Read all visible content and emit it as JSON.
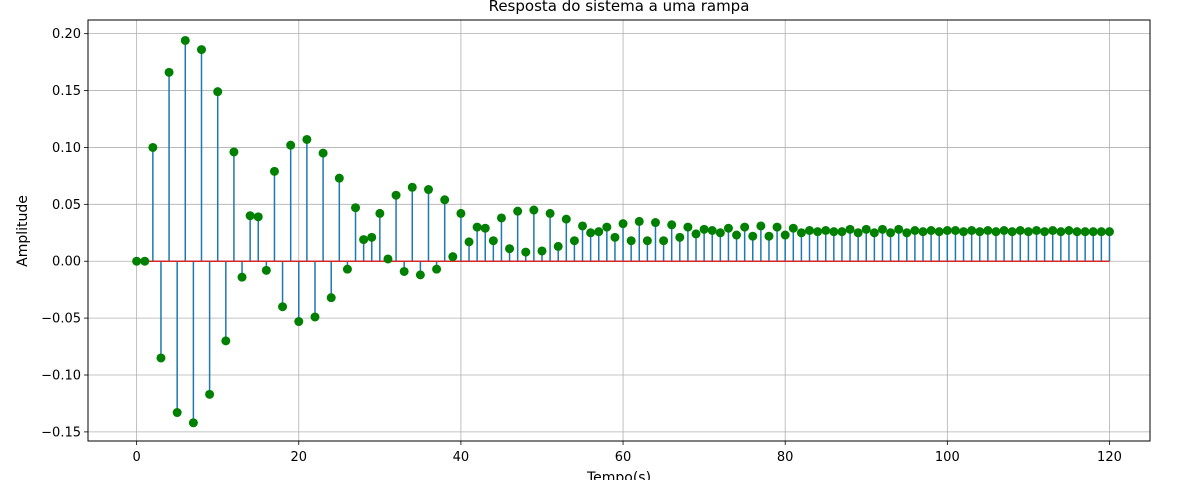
{
  "chart_data": {
    "type": "stem",
    "title": "Resposta do sistema a uma rampa",
    "xlabel": "Tempo(s)",
    "ylabel": "Amplitude",
    "xlim": [
      -6,
      125
    ],
    "ylim": [
      -0.158,
      0.212
    ],
    "grid": true,
    "x_ticks": [
      0,
      20,
      40,
      60,
      80,
      100,
      120
    ],
    "x_tick_labels": [
      "0",
      "20",
      "40",
      "60",
      "80",
      "100",
      "120"
    ],
    "y_ticks": [
      -0.15,
      -0.1,
      -0.05,
      0.0,
      0.05,
      0.1,
      0.15,
      0.2
    ],
    "y_tick_labels": [
      "−0.15",
      "−0.10",
      "−0.05",
      "0.00",
      "0.05",
      "0.10",
      "0.15",
      "0.20"
    ],
    "colors": {
      "stem": "#1f77b4",
      "marker": "#008000",
      "baseline": "#d62728",
      "grid": "#b0b0b0"
    },
    "baseline": 0,
    "x_start": 0,
    "x_step": 1,
    "values": [
      0.0,
      0.0,
      0.1,
      -0.085,
      0.166,
      -0.133,
      0.194,
      -0.142,
      0.186,
      -0.117,
      0.149,
      -0.07,
      0.096,
      -0.014,
      0.04,
      0.039,
      -0.008,
      0.079,
      -0.04,
      0.102,
      -0.053,
      0.107,
      -0.049,
      0.095,
      -0.032,
      0.073,
      -0.007,
      0.047,
      0.019,
      0.021,
      0.042,
      0.002,
      0.058,
      -0.009,
      0.065,
      -0.012,
      0.063,
      -0.007,
      0.054,
      0.004,
      0.042,
      0.017,
      0.03,
      0.029,
      0.018,
      0.038,
      0.011,
      0.044,
      0.008,
      0.045,
      0.009,
      0.042,
      0.013,
      0.037,
      0.018,
      0.031,
      0.025,
      0.026,
      0.03,
      0.021,
      0.033,
      0.018,
      0.035,
      0.018,
      0.034,
      0.018,
      0.032,
      0.021,
      0.03,
      0.024,
      0.028,
      0.027,
      0.025,
      0.029,
      0.023,
      0.03,
      0.022,
      0.031,
      0.022,
      0.03,
      0.023,
      0.029,
      0.025,
      0.027,
      0.026,
      0.027,
      0.026,
      0.026,
      0.028,
      0.025,
      0.028,
      0.025,
      0.028,
      0.025,
      0.028,
      0.025,
      0.027,
      0.026,
      0.027,
      0.026,
      0.027,
      0.027,
      0.026,
      0.027,
      0.026,
      0.027,
      0.026,
      0.027,
      0.026,
      0.027,
      0.026,
      0.027,
      0.026,
      0.027,
      0.026,
      0.027,
      0.026,
      0.026,
      0.026,
      0.026,
      0.026
    ]
  }
}
